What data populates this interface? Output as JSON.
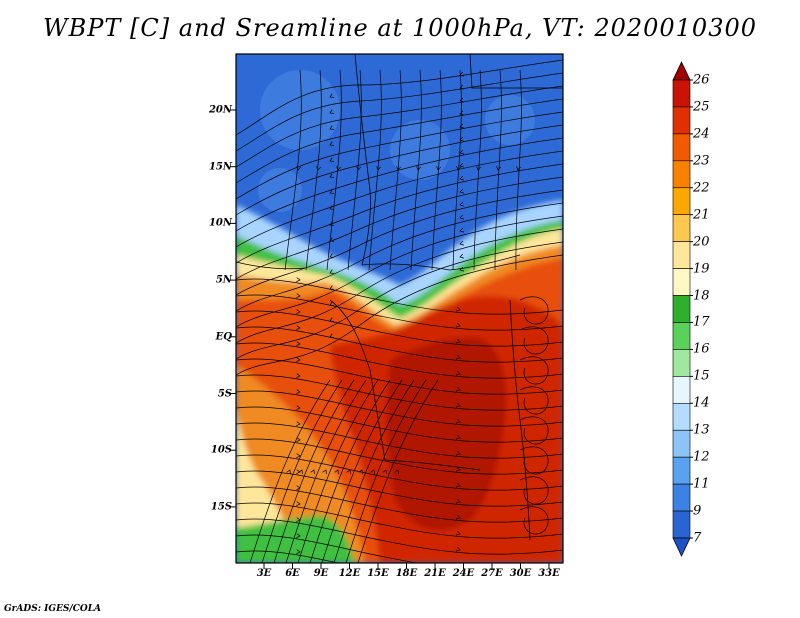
{
  "title": "WBPT [C] and Sreamline at 1000hPa, VT: 2020010300",
  "footer": "GrADS: IGES/COLA",
  "lat_ticks": [
    "20N",
    "15N",
    "10N",
    "5N",
    "EQ",
    "5S",
    "10S",
    "15S"
  ],
  "lon_ticks": [
    "3E",
    "6E",
    "9E",
    "12E",
    "15E",
    "18E",
    "21E",
    "24E",
    "27E",
    "30E",
    "33E"
  ],
  "colorbar": {
    "labels": [
      "26",
      "25",
      "24",
      "23",
      "22",
      "21",
      "20",
      "19",
      "18",
      "17",
      "16",
      "15",
      "14",
      "13",
      "12",
      "11",
      "9",
      "7"
    ],
    "colors": [
      "#a00000",
      "#c81400",
      "#e03000",
      "#f05a00",
      "#f88200",
      "#fca800",
      "#fec850",
      "#fee69a",
      "#fff7c4",
      "#2eb02e",
      "#5ad25a",
      "#a0e8a0",
      "#e6f6ff",
      "#b4dcff",
      "#8cc4f8",
      "#5aa2f0",
      "#3c82e6",
      "#2a64d2",
      "#1e50c8"
    ]
  },
  "map_colors": {
    "cold_blue": "#2e6ad6",
    "mid_blue": "#4a8ae6",
    "light_blue": "#a8d4ff",
    "green": "#40c040",
    "yellow": "#fee69a",
    "orange": "#f08a20",
    "red_orange": "#e85010",
    "red": "#d02800",
    "dark_red": "#b01600"
  }
}
